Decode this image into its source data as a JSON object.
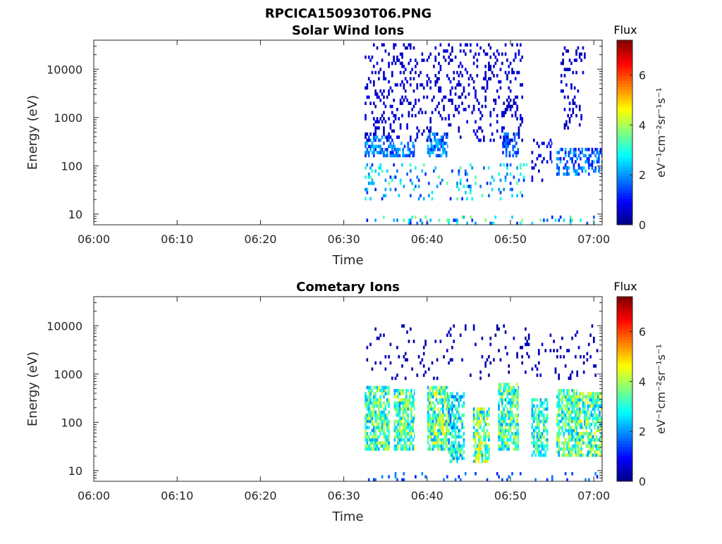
{
  "figure": {
    "title": "RPCICA150930T06.PNG"
  },
  "colormap": "jet",
  "chart_data": [
    {
      "type": "heatmap",
      "title": "Solar Wind Ions",
      "xlabel": "Time",
      "ylabel": "Energy (eV)",
      "xlim": [
        "06:00",
        "07:01"
      ],
      "xticks": [
        "06:00",
        "06:10",
        "06:20",
        "06:30",
        "06:40",
        "06:50",
        "07:00"
      ],
      "ylim": [
        6,
        40000
      ],
      "yscale": "log",
      "yticks": [
        "10",
        "100",
        "1000",
        "10000"
      ],
      "colorbar": {
        "label": "Flux",
        "unit": "eV⁻¹cm⁻²sr⁻¹s⁻¹",
        "range": [
          0,
          7.4
        ],
        "ticks": [
          "0",
          "2",
          "4",
          "6"
        ]
      },
      "data_start": "06:32:30",
      "data_end": "07:01:00",
      "regions": [
        {
          "t0": "06:32:30",
          "t1": "06:36:00",
          "e0": 150,
          "e1": 400,
          "flux": [
            1,
            2.5
          ],
          "density": 0.55
        },
        {
          "t0": "06:36:00",
          "t1": "06:38:30",
          "e0": 150,
          "e1": 300,
          "flux": [
            1,
            2.5
          ],
          "density": 0.5
        },
        {
          "t0": "06:40:00",
          "t1": "06:42:30",
          "e0": 150,
          "e1": 500,
          "flux": [
            1,
            2.5
          ],
          "density": 0.55
        },
        {
          "t0": "06:49:00",
          "t1": "06:51:00",
          "e0": 150,
          "e1": 500,
          "flux": [
            1,
            2
          ],
          "density": 0.55
        },
        {
          "t0": "06:55:30",
          "t1": "07:01:00",
          "e0": 60,
          "e1": 250,
          "flux": [
            0.8,
            2.5
          ],
          "density": 0.45
        },
        {
          "t0": "06:32:30",
          "t1": "06:52:00",
          "e0": 20,
          "e1": 120,
          "flux": [
            1,
            3.5
          ],
          "density": 0.12
        },
        {
          "t0": "06:32:30",
          "t1": "06:51:30",
          "e0": 300,
          "e1": 35000,
          "flux": [
            0.3,
            0.8
          ],
          "density": 0.16
        },
        {
          "t0": "06:56:00",
          "t1": "06:59:00",
          "e0": 600,
          "e1": 30000,
          "flux": [
            0.3,
            0.8
          ],
          "density": 0.16
        },
        {
          "t0": "06:52:30",
          "t1": "06:55:00",
          "e0": 50,
          "e1": 400,
          "flux": [
            0.3,
            1.2
          ],
          "density": 0.15
        },
        {
          "t0": "06:32:30",
          "t1": "07:01:00",
          "e0": 6,
          "e1": 10,
          "flux": [
            1,
            4
          ],
          "density": 0.12
        }
      ]
    },
    {
      "type": "heatmap",
      "title": "Cometary Ions",
      "xlabel": "Time",
      "ylabel": "Energy (eV)",
      "xlim": [
        "06:00",
        "07:01"
      ],
      "xticks": [
        "06:00",
        "06:10",
        "06:20",
        "06:30",
        "06:40",
        "06:50",
        "07:00"
      ],
      "ylim": [
        6,
        40000
      ],
      "yscale": "log",
      "yticks": [
        "10",
        "100",
        "1000",
        "10000"
      ],
      "colorbar": {
        "label": "Flux",
        "unit": "eV⁻¹cm⁻²sr⁻¹s⁻¹",
        "range": [
          0,
          7.4
        ],
        "ticks": [
          "0",
          "2",
          "4",
          "6"
        ]
      },
      "data_start": "06:32:30",
      "data_end": "07:01:00",
      "regions": [
        {
          "t0": "06:32:30",
          "t1": "06:35:30",
          "e0": 25,
          "e1": 600,
          "flux": [
            2,
            4.5
          ],
          "density": 0.75
        },
        {
          "t0": "06:36:00",
          "t1": "06:38:30",
          "e0": 25,
          "e1": 500,
          "flux": [
            2,
            4.5
          ],
          "density": 0.75
        },
        {
          "t0": "06:40:00",
          "t1": "06:42:30",
          "e0": 25,
          "e1": 600,
          "flux": [
            2,
            4.8
          ],
          "density": 0.75
        },
        {
          "t0": "06:42:30",
          "t1": "06:44:30",
          "e0": 15,
          "e1": 400,
          "flux": [
            1.5,
            4
          ],
          "density": 0.6
        },
        {
          "t0": "06:45:30",
          "t1": "06:47:30",
          "e0": 15,
          "e1": 200,
          "flux": [
            2,
            5
          ],
          "density": 0.7
        },
        {
          "t0": "06:48:30",
          "t1": "06:51:00",
          "e0": 25,
          "e1": 700,
          "flux": [
            2,
            4.5
          ],
          "density": 0.75
        },
        {
          "t0": "06:52:30",
          "t1": "06:54:30",
          "e0": 20,
          "e1": 300,
          "flux": [
            2,
            4
          ],
          "density": 0.6
        },
        {
          "t0": "06:55:30",
          "t1": "06:58:00",
          "e0": 20,
          "e1": 500,
          "flux": [
            2,
            4.5
          ],
          "density": 0.75
        },
        {
          "t0": "06:58:00",
          "t1": "07:01:00",
          "e0": 20,
          "e1": 450,
          "flux": [
            2,
            4.8
          ],
          "density": 0.75
        },
        {
          "t0": "06:32:30",
          "t1": "07:00:30",
          "e0": 800,
          "e1": 10000,
          "flux": [
            0.2,
            0.6
          ],
          "density": 0.06
        },
        {
          "t0": "06:32:30",
          "t1": "07:01:00",
          "e0": 6,
          "e1": 10,
          "flux": [
            0.8,
            2
          ],
          "density": 0.1
        }
      ]
    }
  ]
}
